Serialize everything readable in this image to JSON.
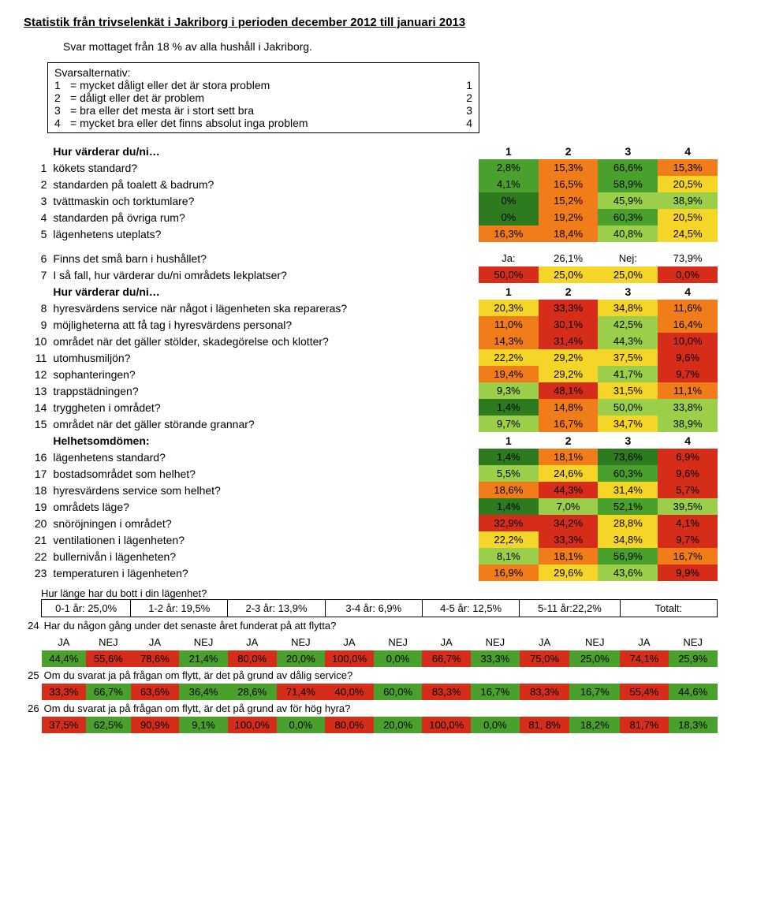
{
  "title": "Statistik från trivselenkät i Jakriborg i perioden december 2012 till januari 2013",
  "subtitle": "Svar mottaget från 18 % av alla hushåll i Jakriborg.",
  "altbox": {
    "heading": "Svarsalternativ:",
    "rows": [
      {
        "n": "1",
        "t": "= mycket dåligt eller det är stora problem",
        "v": "1"
      },
      {
        "n": "2",
        "t": "= dåligt eller det är problem",
        "v": "2"
      },
      {
        "n": "3",
        "t": "= bra eller det mesta är i stort sett bra",
        "v": "3"
      },
      {
        "n": "4",
        "t": "= mycket bra eller det finns absolut inga problem",
        "v": "4"
      }
    ]
  },
  "section1_header": "Hur värderar du/ni…",
  "col_headers": [
    "1",
    "2",
    "3",
    "4"
  ],
  "section1": [
    {
      "n": "1",
      "q": "kökets standard?",
      "v": [
        "2,8%",
        "15,3%",
        "66,6%",
        "15,3%"
      ],
      "c": [
        "c-green",
        "c-orange",
        "c-green",
        "c-orange"
      ]
    },
    {
      "n": "2",
      "q": "standarden på toalett & badrum?",
      "v": [
        "4,1%",
        "16,5%",
        "58,9%",
        "20,5%"
      ],
      "c": [
        "c-green",
        "c-orange",
        "c-green",
        "c-yellow"
      ]
    },
    {
      "n": "3",
      "q": "tvättmaskin och torktumlare?",
      "v": [
        "0%",
        "15,2%",
        "45,9%",
        "38,9%"
      ],
      "c": [
        "c-dgreen",
        "c-orange",
        "c-lgreen",
        "c-lgreen"
      ]
    },
    {
      "n": "4",
      "q": "standarden på övriga rum?",
      "v": [
        "0%",
        "19,2%",
        "60,3%",
        "20,5%"
      ],
      "c": [
        "c-dgreen",
        "c-orange",
        "c-green",
        "c-yellow"
      ]
    },
    {
      "n": "5",
      "q": "lägenhetens uteplats?",
      "v": [
        "16,3%",
        "18,4%",
        "40,8%",
        "24,5%"
      ],
      "c": [
        "c-orange",
        "c-orange",
        "c-lgreen",
        "c-yellow"
      ]
    }
  ],
  "q6": {
    "n": "6",
    "q": "Finns det små barn i hushållet?",
    "ja": "Ja:",
    "jav": "26,1%",
    "nej": "Nej:",
    "nejv": "73,9%"
  },
  "q7": {
    "n": "7",
    "q": "I så fall, hur värderar du/ni områdets lekplatser?",
    "v": [
      "50,0%",
      "25,0%",
      "25,0%",
      "0,0%"
    ],
    "c": [
      "c-red",
      "c-yellow",
      "c-yellow",
      "c-red"
    ]
  },
  "section2_header": "Hur värderar du/ni…",
  "section2": [
    {
      "n": "8",
      "q": "hyresvärdens service när något i lägenheten ska repareras?",
      "v": [
        "20,3%",
        "33,3%",
        "34,8%",
        "11,6%"
      ],
      "c": [
        "c-yellow",
        "c-red",
        "c-yellow",
        "c-orange"
      ]
    },
    {
      "n": "9",
      "q": "möjligheterna att få tag i hyresvärdens personal?",
      "v": [
        "11,0%",
        "30,1%",
        "42,5%",
        "16,4%"
      ],
      "c": [
        "c-orange",
        "c-red",
        "c-lgreen",
        "c-orange"
      ]
    },
    {
      "n": "10",
      "q": "området när det gäller stölder, skadegörelse och klotter?",
      "v": [
        "14,3%",
        "31,4%",
        "44,3%",
        "10,0%"
      ],
      "c": [
        "c-orange",
        "c-red",
        "c-lgreen",
        "c-red"
      ]
    },
    {
      "n": "11",
      "q": "utomhusmiljön?",
      "v": [
        "22,2%",
        "29,2%",
        "37,5%",
        "9,6%"
      ],
      "c": [
        "c-yellow",
        "c-yellow",
        "c-yellow",
        "c-red"
      ]
    },
    {
      "n": "12",
      "q": "sophanteringen?",
      "v": [
        "19,4%",
        "29,2%",
        "41,7%",
        "9,7%"
      ],
      "c": [
        "c-orange",
        "c-yellow",
        "c-lgreen",
        "c-red"
      ]
    },
    {
      "n": "13",
      "q": "trappstädningen?",
      "v": [
        "9,3%",
        "48,1%",
        "31,5%",
        "11,1%"
      ],
      "c": [
        "c-lgreen",
        "c-red",
        "c-yellow",
        "c-orange"
      ]
    },
    {
      "n": "14",
      "q": "tryggheten i området?",
      "v": [
        "1,4%",
        "14,8%",
        "50,0%",
        "33,8%"
      ],
      "c": [
        "c-dgreen",
        "c-orange",
        "c-lgreen",
        "c-lgreen"
      ]
    },
    {
      "n": "15",
      "q": "området när det gäller störande grannar?",
      "v": [
        "9,7%",
        "16,7%",
        "34,7%",
        "38,9%"
      ],
      "c": [
        "c-lgreen",
        "c-orange",
        "c-yellow",
        "c-lgreen"
      ]
    }
  ],
  "section3_header": "Helhetsomdömen:",
  "section3": [
    {
      "n": "16",
      "q": "lägenhetens standard?",
      "v": [
        "1,4%",
        "18,1%",
        "73,6%",
        "6,9%"
      ],
      "c": [
        "c-dgreen",
        "c-orange",
        "c-dgreen",
        "c-red"
      ]
    },
    {
      "n": "17",
      "q": "bostadsområdet som helhet?",
      "v": [
        "5,5%",
        "24,6%",
        "60,3%",
        "9,6%"
      ],
      "c": [
        "c-lgreen",
        "c-yellow",
        "c-green",
        "c-red"
      ]
    },
    {
      "n": "18",
      "q": "hyresvärdens service som helhet?",
      "v": [
        "18,6%",
        "44,3%",
        "31,4%",
        "5,7%"
      ],
      "c": [
        "c-orange",
        "c-red",
        "c-yellow",
        "c-red"
      ]
    },
    {
      "n": "19",
      "q": "områdets läge?",
      "v": [
        "1,4%",
        "7,0%",
        "52,1%",
        "39,5%"
      ],
      "c": [
        "c-dgreen",
        "c-lgreen",
        "c-green",
        "c-lgreen"
      ]
    },
    {
      "n": "20",
      "q": "snöröjningen i området?",
      "v": [
        "32,9%",
        "34,2%",
        "28,8%",
        "4,1%"
      ],
      "c": [
        "c-red",
        "c-red",
        "c-yellow",
        "c-red"
      ]
    },
    {
      "n": "21",
      "q": "ventilationen i lägenheten?",
      "v": [
        "22,2%",
        "33,3%",
        "34,8%",
        "9,7%"
      ],
      "c": [
        "c-yellow",
        "c-red",
        "c-yellow",
        "c-red"
      ]
    },
    {
      "n": "22",
      "q": "bullernivån i lägenheten?",
      "v": [
        "8,1%",
        "18,1%",
        "56,9%",
        "16,7%"
      ],
      "c": [
        "c-lgreen",
        "c-orange",
        "c-green",
        "c-orange"
      ]
    },
    {
      "n": "23",
      "q": "temperaturen i lägenheten?",
      "v": [
        "16,9%",
        "29,6%",
        "43,6%",
        "9,9%"
      ],
      "c": [
        "c-orange",
        "c-yellow",
        "c-lgreen",
        "c-red"
      ]
    }
  ],
  "duration_q": "Hur länge har du bott i din lägenhet?",
  "duration_boxes": [
    "0-1 år: 25,0%",
    "1-2 år: 19,5%",
    "2-3 år: 13,9%",
    "3-4 år: 6,9%",
    "4-5 år: 12,5%",
    "5-11 år:22,2%",
    "Totalt:"
  ],
  "q24_n": "24",
  "q24": "Har du någon gång under det senaste året funderat på att flytta?",
  "janej": [
    "JA",
    "NEJ"
  ],
  "row24": [
    {
      "v": "44,4%",
      "c": "c-green"
    },
    {
      "v": "55,6%",
      "c": "c-red"
    },
    {
      "v": "78,6%",
      "c": "c-red"
    },
    {
      "v": "21,4%",
      "c": "c-green"
    },
    {
      "v": "80,0%",
      "c": "c-red"
    },
    {
      "v": "20,0%",
      "c": "c-green"
    },
    {
      "v": "100,0%",
      "c": "c-red"
    },
    {
      "v": "0,0%",
      "c": "c-green"
    },
    {
      "v": "66,7%",
      "c": "c-red"
    },
    {
      "v": "33,3%",
      "c": "c-green"
    },
    {
      "v": "75,0%",
      "c": "c-red"
    },
    {
      "v": "25,0%",
      "c": "c-green"
    },
    {
      "v": "74,1%",
      "c": "c-red"
    },
    {
      "v": "25,9%",
      "c": "c-green"
    }
  ],
  "q25_n": "25",
  "q25": "Om du svarat ja på frågan om flytt, är det på grund av dålig service?",
  "row25": [
    {
      "v": "33,3%",
      "c": "c-red"
    },
    {
      "v": "66,7%",
      "c": "c-green"
    },
    {
      "v": "63,6%",
      "c": "c-red"
    },
    {
      "v": "36,4%",
      "c": "c-green"
    },
    {
      "v": "28,6%",
      "c": "c-green"
    },
    {
      "v": "71,4%",
      "c": "c-red"
    },
    {
      "v": "40,0%",
      "c": "c-red"
    },
    {
      "v": "60,0%",
      "c": "c-green"
    },
    {
      "v": "83,3%",
      "c": "c-red"
    },
    {
      "v": "16,7%",
      "c": "c-green"
    },
    {
      "v": "83,3%",
      "c": "c-red"
    },
    {
      "v": "16,7%",
      "c": "c-green"
    },
    {
      "v": "55,4%",
      "c": "c-red"
    },
    {
      "v": "44,6%",
      "c": "c-green"
    }
  ],
  "q26_n": "26",
  "q26": "Om du svarat ja på frågan om flytt, är det på grund av för hög hyra?",
  "row26": [
    {
      "v": "37,5%",
      "c": "c-red"
    },
    {
      "v": "62,5%",
      "c": "c-green"
    },
    {
      "v": "90,9%",
      "c": "c-red"
    },
    {
      "v": "9,1%",
      "c": "c-green"
    },
    {
      "v": "100,0%",
      "c": "c-red"
    },
    {
      "v": "0,0%",
      "c": "c-green"
    },
    {
      "v": "80,0%",
      "c": "c-red"
    },
    {
      "v": "20,0%",
      "c": "c-green"
    },
    {
      "v": "100,0%",
      "c": "c-red"
    },
    {
      "v": "0,0%",
      "c": "c-green"
    },
    {
      "v": "81, 8%",
      "c": "c-red"
    },
    {
      "v": "18,2%",
      "c": "c-green"
    },
    {
      "v": "81,7%",
      "c": "c-red"
    },
    {
      "v": "18,3%",
      "c": "c-green"
    }
  ]
}
